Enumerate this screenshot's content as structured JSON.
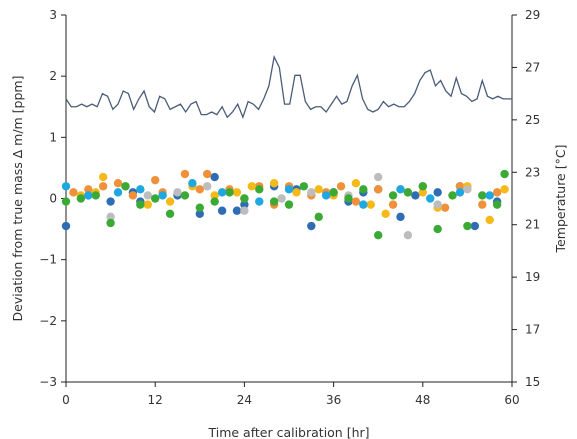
{
  "chart_data": {
    "type": "scatter",
    "title": "",
    "xlabel": "Time after calibration [hr]",
    "ylabel": "Deviation from true mass ∆ m/m [ppm]",
    "y2label": "Temperature [°C]",
    "xlim": [
      0,
      60
    ],
    "ylim": [
      -3,
      3
    ],
    "y2lim": [
      15,
      29
    ],
    "xticks": [
      "0",
      "12",
      "24",
      "36",
      "48",
      "60"
    ],
    "yticks": [
      "−3",
      "−2",
      "−1",
      "0",
      "1",
      "2",
      "3"
    ],
    "y2ticks": [
      "15",
      "17",
      "19",
      "21",
      "23",
      "25",
      "27",
      "29"
    ],
    "grid": false,
    "legend": "none",
    "colors": {
      "blue": "#2e6db4",
      "orange": "#f0913a",
      "yellow": "#f6b917",
      "gray": "#bdbdbd",
      "green": "#3aaa35",
      "cyan": "#1fa7e1",
      "temperature": "#4a5d78"
    },
    "temperature": {
      "x": [
        0,
        0.7,
        1.4,
        2.1,
        2.8,
        3.5,
        4.2,
        4.9,
        5.6,
        6.3,
        7.0,
        7.7,
        8.4,
        9.1,
        9.8,
        10.5,
        11.2,
        11.9,
        12.6,
        13.3,
        14.0,
        14.7,
        15.4,
        16.1,
        16.8,
        17.5,
        18.2,
        18.9,
        19.6,
        20.3,
        21.0,
        21.7,
        22.4,
        23.1,
        23.8,
        24.5,
        25.2,
        25.9,
        26.6,
        27.3,
        28.0,
        28.7,
        29.4,
        30.1,
        30.8,
        31.5,
        32.2,
        32.9,
        33.6,
        34.3,
        35.0,
        35.7,
        36.4,
        37.1,
        37.8,
        38.5,
        39.2,
        39.9,
        40.6,
        41.3,
        42.0,
        42.7,
        43.4,
        44.1,
        44.8,
        45.5,
        46.2,
        46.9,
        47.6,
        48.3,
        49.0,
        49.7,
        50.4,
        51.1,
        51.8,
        52.5,
        53.2,
        53.9,
        54.6,
        55.3,
        56.0,
        56.7,
        57.4,
        58.1,
        58.8,
        59.5,
        60
      ],
      "y": [
        25.8,
        25.5,
        25.5,
        25.6,
        25.5,
        25.6,
        25.5,
        26.0,
        25.9,
        25.4,
        25.6,
        26.1,
        26.0,
        25.4,
        25.8,
        26.1,
        25.5,
        25.3,
        25.9,
        25.8,
        25.4,
        25.5,
        25.6,
        25.3,
        25.6,
        25.7,
        25.2,
        25.2,
        25.3,
        25.2,
        25.5,
        25.1,
        25.3,
        25.6,
        25.1,
        25.7,
        25.6,
        25.4,
        25.8,
        26.3,
        27.4,
        27.0,
        25.6,
        25.6,
        26.7,
        26.7,
        25.7,
        25.4,
        25.5,
        25.5,
        25.3,
        25.6,
        25.9,
        25.6,
        25.7,
        26.3,
        26.7,
        25.8,
        25.4,
        25.3,
        25.4,
        25.7,
        25.5,
        25.6,
        25.5,
        25.5,
        25.7,
        26.0,
        26.5,
        26.8,
        26.9,
        26.3,
        26.5,
        26.1,
        25.9,
        26.6,
        26.0,
        25.9,
        25.7,
        25.8,
        26.5,
        25.9,
        25.8,
        25.9,
        25.8,
        25.8,
        25.8
      ]
    },
    "series": [
      {
        "color": "blue",
        "x": [
          0,
          3,
          6,
          9,
          10,
          15,
          18,
          20,
          21,
          23,
          24,
          28,
          31,
          33,
          36,
          38,
          40,
          42,
          45,
          47,
          50,
          53,
          55,
          58
        ],
        "y": [
          -0.45,
          0.05,
          -0.05,
          0.1,
          -0.05,
          0.05,
          -0.25,
          0.35,
          -0.2,
          -0.2,
          -0.1,
          0.2,
          0.15,
          -0.45,
          0.1,
          -0.05,
          0.1,
          0.15,
          -0.3,
          0.05,
          0.1,
          0.2,
          -0.45,
          -0.05
        ]
      },
      {
        "color": "orange",
        "x": [
          1,
          3,
          5,
          7,
          9,
          12,
          13,
          16,
          18,
          19,
          22,
          24,
          26,
          28,
          30,
          33,
          35,
          37,
          39,
          42,
          44,
          46,
          48,
          51,
          53,
          56,
          58
        ],
        "y": [
          0.1,
          0.15,
          0.2,
          0.25,
          0.05,
          0.3,
          0.1,
          0.4,
          0.15,
          0.4,
          0.15,
          0.0,
          0.2,
          -0.1,
          0.2,
          0.05,
          0.1,
          0.2,
          -0.05,
          0.15,
          -0.1,
          0.1,
          0.2,
          -0.15,
          0.2,
          -0.1,
          0.1
        ]
      },
      {
        "color": "yellow",
        "x": [
          2,
          4,
          5,
          8,
          11,
          14,
          17,
          20,
          23,
          25,
          28,
          31,
          34,
          36,
          39,
          41,
          43,
          45,
          48,
          50,
          52,
          54,
          57,
          59
        ],
        "y": [
          0.05,
          0.1,
          0.35,
          0.2,
          -0.1,
          -0.05,
          0.2,
          0.05,
          0.1,
          0.2,
          0.25,
          0.1,
          0.15,
          0.05,
          0.25,
          -0.1,
          -0.25,
          0.15,
          0.1,
          -0.15,
          0.05,
          0.2,
          -0.35,
          0.15
        ]
      },
      {
        "color": "gray",
        "x": [
          6,
          11,
          15,
          19,
          24,
          29,
          33,
          38,
          42,
          46,
          50,
          54
        ],
        "y": [
          -0.3,
          0.05,
          0.1,
          0.2,
          -0.2,
          0.0,
          0.1,
          0.05,
          0.35,
          -0.6,
          -0.1,
          0.15
        ]
      },
      {
        "color": "green",
        "x": [
          0,
          2,
          4,
          6,
          8,
          10,
          12,
          14,
          16,
          18,
          20,
          22,
          24,
          26,
          28,
          30,
          32,
          34,
          36,
          38,
          40,
          42,
          44,
          46,
          48,
          50,
          52,
          54,
          56,
          58,
          59
        ],
        "y": [
          -0.05,
          0.0,
          0.05,
          -0.4,
          0.2,
          -0.1,
          0.0,
          -0.25,
          0.05,
          -0.15,
          -0.05,
          0.1,
          0.0,
          0.15,
          -0.05,
          -0.1,
          0.2,
          -0.3,
          0.1,
          0.0,
          0.15,
          -0.6,
          0.05,
          0.1,
          0.2,
          -0.5,
          0.05,
          -0.45,
          0.05,
          -0.1,
          0.4
        ]
      },
      {
        "color": "cyan",
        "x": [
          0,
          3,
          7,
          10,
          13,
          17,
          21,
          26,
          30,
          35,
          40,
          45,
          49,
          53,
          57
        ],
        "y": [
          0.2,
          0.05,
          0.1,
          0.15,
          0.05,
          0.25,
          0.1,
          -0.05,
          0.15,
          0.05,
          -0.1,
          0.15,
          0.0,
          0.1,
          0.05
        ]
      }
    ]
  }
}
